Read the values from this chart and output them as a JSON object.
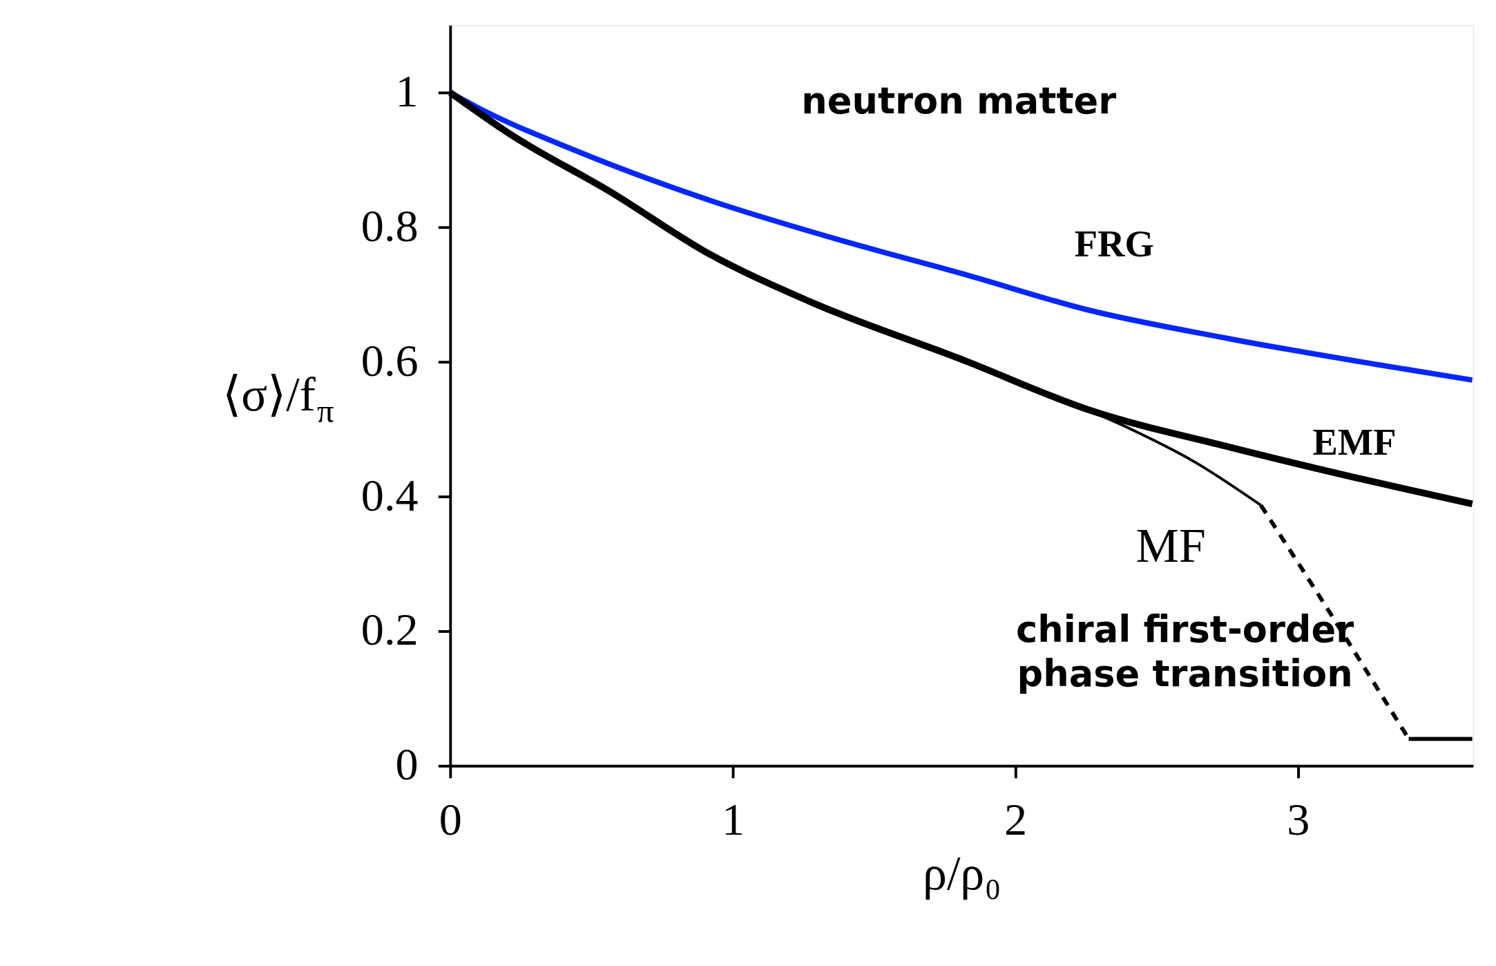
{
  "chart_data": {
    "type": "line",
    "annotations": [
      "neutron matter",
      "chiral first-order\nphase transition"
    ],
    "xlabel": "ρ/ρ₀",
    "ylabel": "⟨σ⟩/f$_{π}$",
    "xlim": [
      0,
      3.62
    ],
    "ylim": [
      0,
      1.1
    ],
    "xticks": [
      0,
      1,
      2,
      3
    ],
    "yticks": [
      0,
      0.2,
      0.4,
      0.6,
      0.8,
      1
    ],
    "grid": false,
    "marker": "none",
    "series": [
      {
        "name": "FRG",
        "color": "#0027ff",
        "line_style": "solid",
        "x": [
          0,
          0.096,
          0.448,
          0.918,
          1.387,
          1.82,
          2.258,
          2.762,
          3.266,
          3.617
        ],
        "values": [
          1,
          0.978,
          0.913,
          0.84,
          0.78,
          0.73,
          0.677,
          0.634,
          0.597,
          0.573
        ]
      },
      {
        "name": "EMF",
        "color": "#000000",
        "line_style": "solid",
        "x": [
          0,
          0.213,
          0.565,
          0.918,
          1.27,
          1.82,
          2.258,
          2.762,
          3.266,
          3.617
        ],
        "values": [
          1,
          0.938,
          0.853,
          0.76,
          0.69,
          0.602,
          0.529,
          0.473,
          0.422,
          0.389
        ]
      },
      {
        "name": "MF",
        "color": "#000000",
        "line_style": "solid",
        "x": [
          0,
          0.213,
          0.565,
          0.918,
          1.27,
          1.82,
          2.006,
          2.384,
          2.636,
          2.869
        ],
        "values": [
          1,
          0.938,
          0.853,
          0.76,
          0.69,
          0.602,
          0.57,
          0.505,
          0.451,
          0.387
        ]
      },
      {
        "color": "#000000",
        "line_style": "dashed",
        "x": [
          2.869,
          3.079,
          3.392
        ],
        "values": [
          0.387,
          0.25,
          0.04
        ]
      },
      {
        "color": "#000000",
        "line_style": "solid",
        "x": [
          3.392,
          3.617
        ],
        "values": [
          0.04,
          0.04
        ]
      }
    ]
  }
}
